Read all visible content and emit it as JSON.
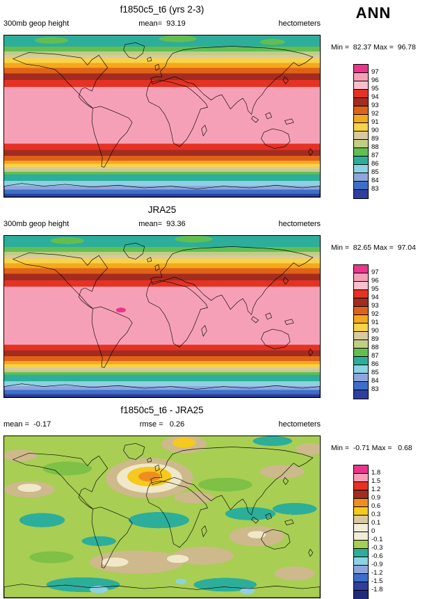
{
  "season": "ANN",
  "panels": [
    {
      "title": "f1850c5_t6 (yrs 2-3)",
      "var_label": "300mb geop height",
      "center_stat": "mean=  93.19",
      "units_label": "hectometers",
      "minmax": "Min =  82.37 Max =  96.78",
      "legend_labels": [
        "97",
        "96",
        "95",
        "94",
        "93",
        "92",
        "91",
        "90",
        "89",
        "88",
        "87",
        "86",
        "85",
        "84",
        "83"
      ],
      "legend_colors": [
        "#E9368B",
        "#F6A0B8",
        "#F9C0CC",
        "#E63223",
        "#A32C21",
        "#E06218",
        "#F4A81C",
        "#F7D348",
        "#D9C9A0",
        "#C2CD85",
        "#63BE51",
        "#2CAE9A",
        "#8ED1E3",
        "#8FA6DC",
        "#3D6FC9",
        "#2F3F9E"
      ]
    },
    {
      "title": "JRA25",
      "var_label": "300mb geop height",
      "center_stat": "mean=  93.36",
      "units_label": "hectometers",
      "minmax": "Min =  82.65 Max =  97.04",
      "legend_labels": [
        "97",
        "96",
        "95",
        "94",
        "93",
        "92",
        "91",
        "90",
        "89",
        "88",
        "87",
        "86",
        "85",
        "84",
        "83"
      ],
      "legend_colors": [
        "#E9368B",
        "#F6A0B8",
        "#F9C0CC",
        "#E63223",
        "#A32C21",
        "#E06218",
        "#F4A81C",
        "#F7D348",
        "#D9C9A0",
        "#C2CD85",
        "#63BE51",
        "#2CAE9A",
        "#8ED1E3",
        "#8FA6DC",
        "#3D6FC9",
        "#2F3F9E"
      ]
    },
    {
      "title": "f1850c5_t6 - JRA25",
      "var_label": "mean =  -0.17",
      "center_stat": "rmse =   0.26",
      "units_label": "hectometers",
      "minmax": "Min =  -0.71 Max =   0.68",
      "legend_labels": [
        "1.8",
        "1.5",
        "1.2",
        "0.9",
        "0.6",
        "0.3",
        "0.1",
        "0",
        "-0.1",
        "-0.3",
        "-0.6",
        "-0.9",
        "-1.2",
        "-1.5",
        "-1.8"
      ],
      "legend_colors": [
        "#E9368B",
        "#F6A0B8",
        "#E63223",
        "#A32C21",
        "#EF8E1E",
        "#F5C91E",
        "#D9C9A0",
        "#F2EDD8",
        "#F2EDD8",
        "#A8CE53",
        "#2CAE9A",
        "#8ED1E3",
        "#8FA6DC",
        "#3D6FC9",
        "#2F3F9E",
        "#232C7A"
      ]
    }
  ],
  "chart_data": [
    {
      "type": "heatmap",
      "subtype": "filled-contour world map (equirectangular, 90N-90S)",
      "title": "f1850c5_t6 (yrs 2-3)",
      "season": "ANN",
      "variable": "300mb geop height",
      "units": "hectometers",
      "mean": 93.19,
      "min": 82.37,
      "max": 96.78,
      "contour_levels": [
        83,
        84,
        85,
        86,
        87,
        88,
        89,
        90,
        91,
        92,
        93,
        94,
        95,
        96,
        97
      ],
      "palette_high_to_low": [
        "#E9368B",
        "#F6A0B8",
        "#F9C0CC",
        "#E63223",
        "#A32C21",
        "#E06218",
        "#F4A81C",
        "#F7D348",
        "#D9C9A0",
        "#C2CD85",
        "#63BE51",
        "#2CAE9A",
        "#8ED1E3",
        "#8FA6DC",
        "#3D6FC9",
        "#2F3F9E"
      ],
      "pattern": "zonal bands: broad pink tropical maximum (95-97 hm) between ~35N and ~30S; values decrease poleward through red, dark red, orange, yellow, tan, green bands; Arctic teal/green (~86-88 hm); Antarctic light blue to dark blue (~83 hm minimum)"
    },
    {
      "type": "heatmap",
      "subtype": "filled-contour world map (equirectangular, 90N-90S)",
      "title": "JRA25",
      "season": "ANN",
      "variable": "300mb geop height",
      "units": "hectometers",
      "mean": 93.36,
      "min": 82.65,
      "max": 97.04,
      "contour_levels": [
        83,
        84,
        85,
        86,
        87,
        88,
        89,
        90,
        91,
        92,
        93,
        94,
        95,
        96,
        97
      ],
      "palette_high_to_low": [
        "#E9368B",
        "#F6A0B8",
        "#F9C0CC",
        "#E63223",
        "#A32C21",
        "#E06218",
        "#F4A81C",
        "#F7D348",
        "#D9C9A0",
        "#C2CD85",
        "#63BE51",
        "#2CAE9A",
        "#8ED1E3",
        "#8FA6DC",
        "#3D6FC9",
        "#2F3F9E"
      ],
      "pattern": "same zonal structure as model panel; small magenta >97 hm maximum in western tropical Pacific near the Philippines; Antarctic minimum dark blue (~83 hm)"
    },
    {
      "type": "heatmap",
      "subtype": "filled-contour world map difference (model minus reanalysis)",
      "title": "f1850c5_t6 - JRA25",
      "season": "ANN",
      "variable": "300mb geop height difference",
      "units": "hectometers",
      "mean": -0.17,
      "rmse": 0.26,
      "min": -0.71,
      "max": 0.68,
      "contour_levels": [
        -1.8,
        -1.5,
        -1.2,
        -0.9,
        -0.6,
        -0.3,
        -0.1,
        0,
        0.1,
        0.3,
        0.6,
        0.9,
        1.2,
        1.5,
        1.8
      ],
      "palette_high_to_low": [
        "#E9368B",
        "#F6A0B8",
        "#E63223",
        "#A32C21",
        "#EF8E1E",
        "#F5C91E",
        "#D9C9A0",
        "#F2EDD8",
        "#F2EDD8",
        "#A8CE53",
        "#2CAE9A",
        "#8ED1E3",
        "#8FA6DC",
        "#3D6FC9",
        "#2F3F9E",
        "#232C7A"
      ],
      "pattern": "mostly weak negative bias (light green -0.3 to -0.1, teal -0.6 to -0.3); positive bullseye up to ~0.6-0.9 (orange/yellow) over central Asia; yellow positive patch over Greenland/Arctic; tan 0.1-0.3 blobs over N Pacific, N Atlantic and southern mid-latitudes; scattered light-blue -0.9 to -0.6 spots near Antarctica"
    }
  ]
}
